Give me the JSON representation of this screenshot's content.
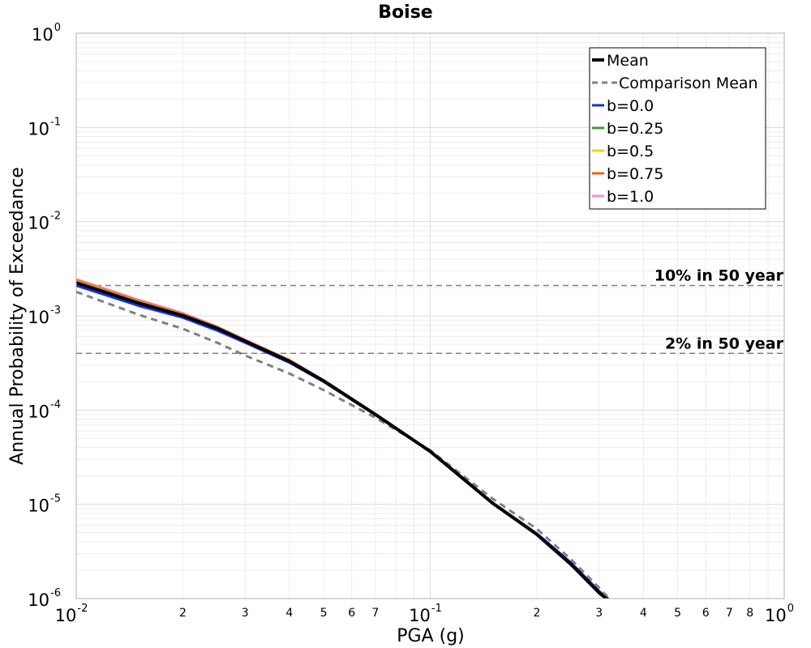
{
  "chart_data": {
    "type": "line",
    "title": "Boise",
    "xlabel": "PGA (g)",
    "ylabel": "Annual Probability of Exceedance",
    "x_scale": "log",
    "y_scale": "log",
    "xlim": [
      0.01,
      1.0
    ],
    "ylim": [
      1e-06,
      1.0
    ],
    "grid": true,
    "legend_position": "top-right",
    "x_major_ticks": [
      {
        "value": 0.01,
        "base": "10",
        "exp": "-2"
      },
      {
        "value": 0.1,
        "base": "10",
        "exp": "-1"
      },
      {
        "value": 1.0,
        "base": "10",
        "exp": "0"
      }
    ],
    "x_minor_ticks": [
      {
        "value": 0.02,
        "label": "2"
      },
      {
        "value": 0.03,
        "label": "3"
      },
      {
        "value": 0.04,
        "label": "4"
      },
      {
        "value": 0.05,
        "label": "5"
      },
      {
        "value": 0.06,
        "label": "6"
      },
      {
        "value": 0.07,
        "label": "7"
      },
      {
        "value": 0.2,
        "label": "2"
      },
      {
        "value": 0.3,
        "label": "3"
      },
      {
        "value": 0.4,
        "label": "4"
      },
      {
        "value": 0.5,
        "label": "5"
      },
      {
        "value": 0.6,
        "label": "6"
      },
      {
        "value": 0.7,
        "label": "7"
      },
      {
        "value": 0.8,
        "label": "8"
      }
    ],
    "y_major_ticks": [
      {
        "value": 1.0,
        "base": "10",
        "exp": "0"
      },
      {
        "value": 0.1,
        "base": "10",
        "exp": "-1"
      },
      {
        "value": 0.01,
        "base": "10",
        "exp": "-2"
      },
      {
        "value": 0.001,
        "base": "10",
        "exp": "-3"
      },
      {
        "value": 0.0001,
        "base": "10",
        "exp": "-4"
      },
      {
        "value": 1e-05,
        "base": "10",
        "exp": "-5"
      },
      {
        "value": 1e-06,
        "base": "10",
        "exp": "-6"
      }
    ],
    "reference_lines": [
      {
        "label": "10% in 50 year",
        "y": 0.0021,
        "color": "#808080"
      },
      {
        "label": "2% in 50 year",
        "y": 0.0004,
        "color": "#808080"
      }
    ],
    "series": [
      {
        "name": "b=1.0",
        "color": "#f08fcf",
        "style": "solid",
        "x": [
          0.01,
          0.015,
          0.02,
          0.025,
          0.03,
          0.04,
          0.05,
          0.07,
          0.1,
          0.15,
          0.2,
          0.25,
          0.3,
          0.32
        ],
        "y": [
          0.00245,
          0.00148,
          0.00107,
          0.00077,
          0.00056,
          0.00034,
          0.000208,
          9.1e-05,
          3.65e-05,
          1.03e-05,
          4.8e-06,
          2.3e-06,
          1.15e-06,
          9.5e-07
        ]
      },
      {
        "name": "b=0.75",
        "color": "#e8651a",
        "style": "solid",
        "x": [
          0.01,
          0.015,
          0.02,
          0.025,
          0.03,
          0.04,
          0.05,
          0.07,
          0.1,
          0.15,
          0.2,
          0.25,
          0.3,
          0.32
        ],
        "y": [
          0.00238,
          0.00144,
          0.00105,
          0.00076,
          0.00055,
          0.00034,
          0.000206,
          9.1e-05,
          3.65e-05,
          1.03e-05,
          4.8e-06,
          2.3e-06,
          1.15e-06,
          9.5e-07
        ]
      },
      {
        "name": "b=0.5",
        "color": "#f2d11a",
        "style": "solid",
        "x": [
          0.01,
          0.015,
          0.02,
          0.025,
          0.03,
          0.04,
          0.05,
          0.07,
          0.1,
          0.15,
          0.2,
          0.25,
          0.3,
          0.32
        ],
        "y": [
          0.00232,
          0.0014,
          0.00103,
          0.00075,
          0.00055,
          0.000335,
          0.000205,
          9e-05,
          3.65e-05,
          1.03e-05,
          4.8e-06,
          2.3e-06,
          1.15e-06,
          9.5e-07
        ]
      },
      {
        "name": "b=0.25",
        "color": "#3aa02a",
        "style": "solid",
        "x": [
          0.01,
          0.015,
          0.02,
          0.025,
          0.03,
          0.04,
          0.05,
          0.07,
          0.1,
          0.15,
          0.2,
          0.25,
          0.3,
          0.32
        ],
        "y": [
          0.00222,
          0.00135,
          0.001,
          0.00073,
          0.00054,
          0.00033,
          0.000203,
          9e-05,
          3.65e-05,
          1.03e-05,
          4.8e-06,
          2.3e-06,
          1.15e-06,
          9.5e-07
        ]
      },
      {
        "name": "b=0.0",
        "color": "#1030e0",
        "style": "solid",
        "x": [
          0.01,
          0.015,
          0.02,
          0.025,
          0.03,
          0.04,
          0.05,
          0.07,
          0.1,
          0.15,
          0.2,
          0.25,
          0.3,
          0.32
        ],
        "y": [
          0.0021,
          0.00128,
          0.00096,
          0.0007,
          0.00052,
          0.00032,
          0.0002,
          8.9e-05,
          3.65e-05,
          1.04e-05,
          4.9e-06,
          2.4e-06,
          1.2e-06,
          9.8e-07
        ]
      },
      {
        "name": "Comparison Mean",
        "color": "#808080",
        "style": "dashed",
        "x": [
          0.01,
          0.015,
          0.02,
          0.025,
          0.03,
          0.04,
          0.05,
          0.07,
          0.1,
          0.15,
          0.2,
          0.25,
          0.3,
          0.32
        ],
        "y": [
          0.0018,
          0.00103,
          0.00073,
          0.00052,
          0.00038,
          0.000245,
          0.000163,
          8.3e-05,
          3.75e-05,
          1.15e-05,
          5.5e-06,
          2.6e-06,
          1.3e-06,
          1e-06
        ]
      },
      {
        "name": "Mean",
        "color": "#000000",
        "style": "solid-thick",
        "x": [
          0.01,
          0.015,
          0.02,
          0.025,
          0.03,
          0.04,
          0.05,
          0.07,
          0.1,
          0.15,
          0.2,
          0.25,
          0.3,
          0.32
        ],
        "y": [
          0.00225,
          0.00137,
          0.00101,
          0.00074,
          0.00054,
          0.00033,
          0.000204,
          9e-05,
          3.65e-05,
          1.03e-05,
          4.8e-06,
          2.3e-06,
          1.15e-06,
          9.5e-07
        ]
      }
    ],
    "legend": [
      {
        "label": "Mean",
        "color": "#000000",
        "style": "solid-thick"
      },
      {
        "label": "Comparison Mean",
        "color": "#808080",
        "style": "dashed"
      },
      {
        "label": "b=0.0",
        "color": "#1030e0",
        "style": "solid"
      },
      {
        "label": "b=0.25",
        "color": "#3aa02a",
        "style": "solid"
      },
      {
        "label": "b=0.5",
        "color": "#f2d11a",
        "style": "solid"
      },
      {
        "label": "b=0.75",
        "color": "#e8651a",
        "style": "solid"
      },
      {
        "label": "b=1.0",
        "color": "#f08fcf",
        "style": "solid"
      }
    ]
  }
}
